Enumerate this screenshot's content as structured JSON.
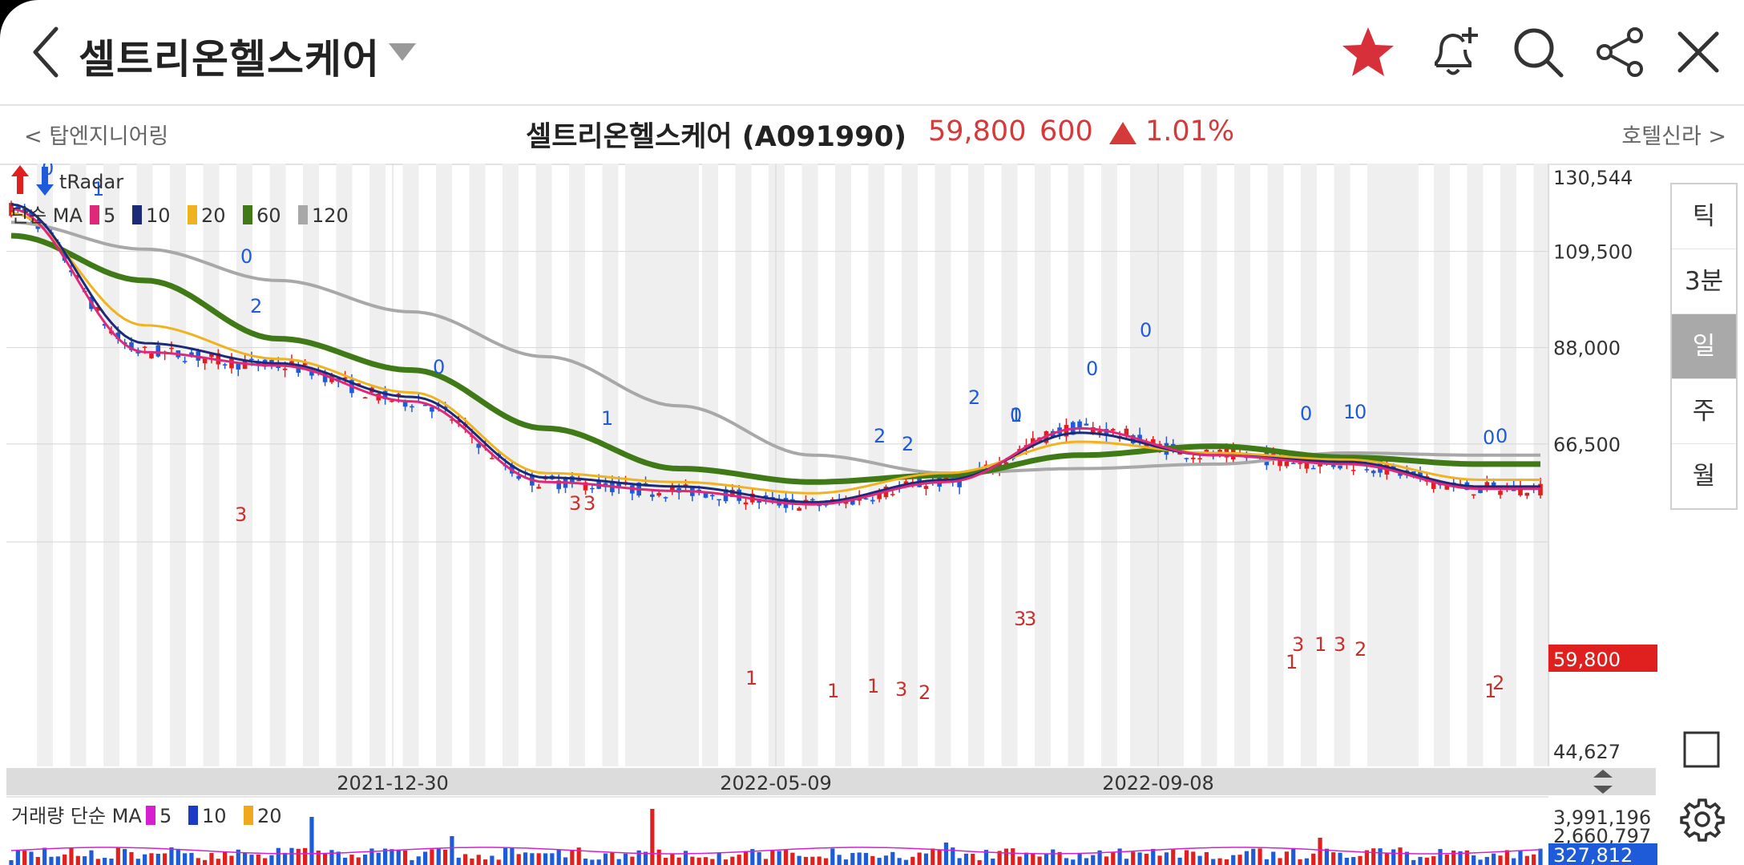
{
  "header": {
    "title": "셀트리온헬스케어",
    "icons": [
      "back-icon",
      "dropdown-icon",
      "star-icon",
      "bell-plus-icon",
      "search-icon",
      "share-icon",
      "close-icon"
    ],
    "star_color": "#d7303a"
  },
  "subheader": {
    "prev_stock": "< 탑엔지니어링",
    "stock_name": "셀트리온헬스케어 (A091990)",
    "price": "59,800",
    "change": "600",
    "change_pct": "1.01%",
    "next_stock": "호텔신라 >",
    "up_color": "#d43a3a"
  },
  "legend": {
    "tradar": "tRadar",
    "ma_prefix": "단순 MA",
    "ma_items": [
      {
        "label": "5",
        "color": "#e0287a"
      },
      {
        "label": "10",
        "color": "#1c2a78"
      },
      {
        "label": "20",
        "color": "#f0b21e"
      },
      {
        "label": "60",
        "color": "#3f7a16"
      },
      {
        "label": "120",
        "color": "#a8a8a8"
      }
    ]
  },
  "volume_legend": {
    "prefix": "거래량 단순 MA",
    "items": [
      {
        "label": "5",
        "color": "#d61fd0"
      },
      {
        "label": "10",
        "color": "#1b3bc7"
      },
      {
        "label": "20",
        "color": "#f0a81e"
      }
    ]
  },
  "periods": [
    {
      "label": "틱",
      "active": false
    },
    {
      "label": "3분",
      "active": false
    },
    {
      "label": "일",
      "active": true
    },
    {
      "label": "주",
      "active": false
    },
    {
      "label": "월",
      "active": false
    }
  ],
  "chart_data": {
    "type": "candlestick",
    "y_axis_labels": [
      "130,544",
      "109,500",
      "88,000",
      "66,500",
      "44,627"
    ],
    "ylim": [
      44627,
      130544
    ],
    "current_price_label": "59,800",
    "current_price": 59800,
    "x_axis_labels": [
      "2021-12-30",
      "2022-05-09",
      "2022-09-08"
    ],
    "volume_axis_labels": [
      "3,991,196",
      "2,660,797"
    ],
    "current_volume_label": "327,812",
    "series": [
      {
        "name": "5",
        "x": [
          0,
          20,
          40,
          60,
          80,
          100,
          120,
          140,
          160,
          180,
          200,
          220
        ],
        "values": [
          119000,
          87000,
          84000,
          76000,
          58000,
          56000,
          53000,
          58000,
          70000,
          64000,
          62000,
          56500
        ]
      },
      {
        "name": "10",
        "x": [
          0,
          20,
          40,
          60,
          80,
          100,
          120,
          140,
          160,
          180,
          200,
          220
        ],
        "values": [
          120000,
          89000,
          84500,
          77000,
          59000,
          57000,
          53500,
          58500,
          69000,
          64000,
          62500,
          57000
        ]
      },
      {
        "name": "20",
        "x": [
          0,
          20,
          40,
          60,
          80,
          100,
          120,
          140,
          160,
          180,
          200,
          220
        ],
        "values": [
          118000,
          93000,
          85500,
          78000,
          60000,
          58000,
          55500,
          60000,
          67000,
          64500,
          63000,
          58500
        ]
      },
      {
        "name": "60",
        "x": [
          0,
          20,
          40,
          60,
          80,
          100,
          120,
          140,
          160,
          180,
          200,
          220
        ],
        "values": [
          113000,
          103000,
          90000,
          83000,
          70000,
          61000,
          58000,
          59500,
          64000,
          66000,
          63500,
          62000
        ]
      },
      {
        "name": "120",
        "x": [
          0,
          20,
          40,
          60,
          80,
          100,
          120,
          140,
          160,
          180,
          200,
          220
        ],
        "values": [
          116000,
          110000,
          103000,
          96000,
          86000,
          75000,
          64000,
          60000,
          61000,
          62000,
          64500,
          64000
        ]
      }
    ],
    "signal_labels_blue": [
      "0",
      "1",
      "0",
      "2",
      "0",
      "1",
      "2",
      "2",
      "0",
      "2",
      "0",
      "0",
      "1",
      "0",
      "1",
      "0",
      "0",
      "0"
    ],
    "signal_labels_red": [
      "3",
      "3",
      "3",
      "1",
      "1",
      "1",
      "3",
      "2",
      "3",
      "3",
      "3",
      "1",
      "1",
      "3",
      "2",
      "1",
      "2"
    ]
  }
}
